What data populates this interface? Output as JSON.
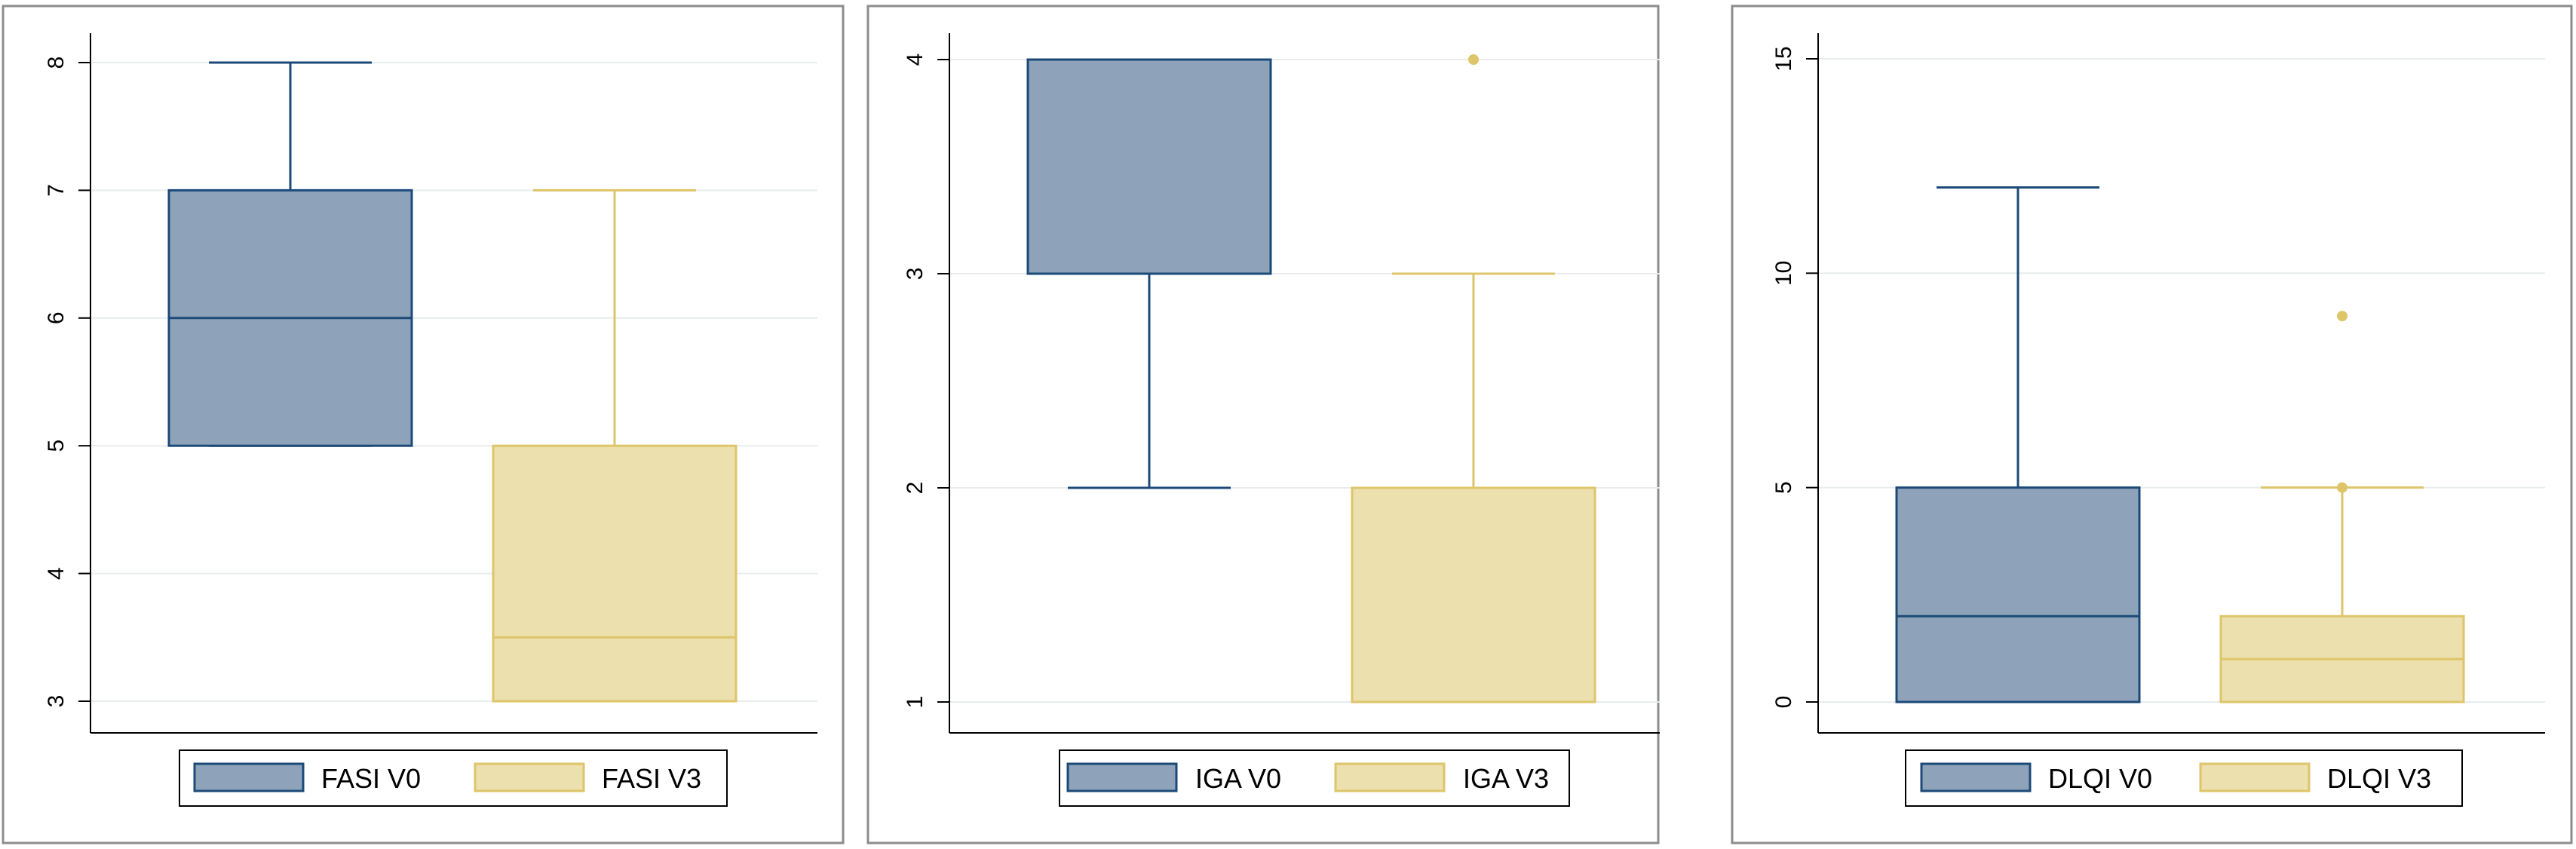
{
  "colors": {
    "v0_fill": "#8EA3BA",
    "v0_stroke": "#1C4A78",
    "v3_fill": "#EBE0AE",
    "v3_stroke": "#DEC56A",
    "grid": "#E8ECEE",
    "frame": "#8C8C8C",
    "axis": "#000000"
  },
  "chart_data": [
    {
      "type": "box",
      "ylim": [
        3,
        8
      ],
      "yticks": [
        3,
        4,
        5,
        6,
        7,
        8
      ],
      "grid": true,
      "legend_position": "bottom",
      "series": [
        {
          "name": "FASI V0",
          "whisker_low": 5,
          "q1": 5,
          "median": 6,
          "q3": 7,
          "whisker_high": 8,
          "outliers": []
        },
        {
          "name": "FASI V3",
          "whisker_low": 3,
          "q1": 3,
          "median": 3.5,
          "q3": 5,
          "whisker_high": 7,
          "outliers": []
        }
      ]
    },
    {
      "type": "box",
      "ylim": [
        1,
        4
      ],
      "yticks": [
        1,
        2,
        3,
        4
      ],
      "grid": true,
      "legend_position": "bottom",
      "series": [
        {
          "name": "IGA V0",
          "whisker_low": 2,
          "q1": 3,
          "median": 4,
          "q3": 4,
          "whisker_high": 4,
          "outliers": []
        },
        {
          "name": "IGA V3",
          "whisker_low": 1,
          "q1": 1,
          "median": 1,
          "q3": 2,
          "whisker_high": 3,
          "outliers": [
            4
          ]
        }
      ]
    },
    {
      "type": "box",
      "ylim": [
        0,
        15
      ],
      "yticks": [
        0,
        5,
        10,
        15
      ],
      "grid": true,
      "legend_position": "bottom",
      "series": [
        {
          "name": "DLQI V0",
          "whisker_low": 0,
          "q1": 0,
          "median": 2,
          "q3": 5,
          "whisker_high": 12,
          "outliers": []
        },
        {
          "name": "DLQI V3",
          "whisker_low": 0,
          "q1": 0,
          "median": 1,
          "q3": 2,
          "whisker_high": 5,
          "outliers": [
            5,
            9
          ]
        }
      ]
    }
  ]
}
